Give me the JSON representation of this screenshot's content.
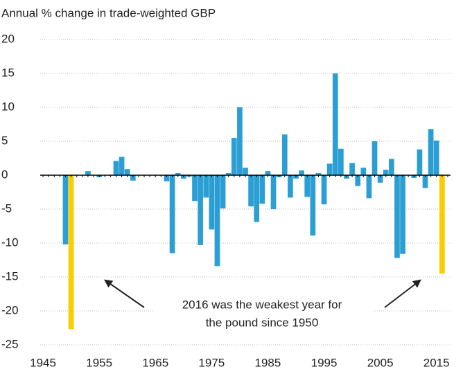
{
  "chart_data": {
    "type": "bar",
    "title": "Annual % change in trade-weighted GBP",
    "annotation": [
      "2016 was the weakest year for",
      "the pound since 1950"
    ],
    "x": [
      1949,
      1950,
      1951,
      1952,
      1953,
      1954,
      1955,
      1956,
      1957,
      1958,
      1959,
      1960,
      1961,
      1962,
      1963,
      1964,
      1965,
      1966,
      1967,
      1968,
      1969,
      1970,
      1971,
      1972,
      1973,
      1974,
      1975,
      1976,
      1977,
      1978,
      1979,
      1980,
      1981,
      1982,
      1983,
      1984,
      1985,
      1986,
      1987,
      1988,
      1989,
      1990,
      1991,
      1992,
      1993,
      1994,
      1995,
      1996,
      1997,
      1998,
      1999,
      2000,
      2001,
      2002,
      2003,
      2004,
      2005,
      2006,
      2007,
      2008,
      2009,
      2010,
      2011,
      2012,
      2013,
      2014,
      2015,
      2016
    ],
    "values": [
      -10.2,
      -22.7,
      0,
      0,
      0.6,
      0,
      -0.3,
      0,
      0,
      2.1,
      2.7,
      0.9,
      -0.8,
      0,
      0,
      0,
      0,
      0,
      -0.9,
      -11.5,
      0.3,
      -0.5,
      -0.2,
      -3.8,
      -10.3,
      -3.3,
      -8,
      -13.4,
      -4.9,
      0.3,
      5.5,
      10,
      1.1,
      -4.6,
      -6.9,
      -4.2,
      0.6,
      -5,
      -0.3,
      6,
      -3.3,
      -0.5,
      0.7,
      -3.2,
      -8.9,
      0.3,
      -4.3,
      1.7,
      15,
      3.9,
      -0.5,
      1.8,
      -1.6,
      1.1,
      -3.4,
      5,
      -1.1,
      0.8,
      2.4,
      -12.2,
      -11.6,
      0,
      -0.4,
      3.8,
      -1.9,
      6.8,
      5.1,
      -14.5
    ],
    "colors": [
      "#2b9fd4",
      "#f9cd00",
      "#2b9fd4",
      "#2b9fd4",
      "#2b9fd4",
      "#2b9fd4",
      "#2b9fd4",
      "#2b9fd4",
      "#2b9fd4",
      "#2b9fd4",
      "#2b9fd4",
      "#2b9fd4",
      "#2b9fd4",
      "#2b9fd4",
      "#2b9fd4",
      "#2b9fd4",
      "#2b9fd4",
      "#2b9fd4",
      "#2b9fd4",
      "#2b9fd4",
      "#2b9fd4",
      "#2b9fd4",
      "#2b9fd4",
      "#2b9fd4",
      "#2b9fd4",
      "#2b9fd4",
      "#2b9fd4",
      "#2b9fd4",
      "#2b9fd4",
      "#2b9fd4",
      "#2b9fd4",
      "#2b9fd4",
      "#2b9fd4",
      "#2b9fd4",
      "#2b9fd4",
      "#2b9fd4",
      "#2b9fd4",
      "#2b9fd4",
      "#2b9fd4",
      "#2b9fd4",
      "#2b9fd4",
      "#2b9fd4",
      "#2b9fd4",
      "#2b9fd4",
      "#2b9fd4",
      "#2b9fd4",
      "#2b9fd4",
      "#2b9fd4",
      "#2b9fd4",
      "#2b9fd4",
      "#2b9fd4",
      "#2b9fd4",
      "#2b9fd4",
      "#2b9fd4",
      "#2b9fd4",
      "#2b9fd4",
      "#2b9fd4",
      "#2b9fd4",
      "#2b9fd4",
      "#2b9fd4",
      "#2b9fd4",
      "#2b9fd4",
      "#2b9fd4",
      "#2b9fd4",
      "#2b9fd4",
      "#2b9fd4",
      "#2b9fd4",
      "#f9cd00"
    ],
    "xlim": [
      1944.5,
      2017.5
    ],
    "xticks": [
      1945,
      1955,
      1965,
      1975,
      1985,
      1995,
      2005,
      2015
    ],
    "ylim": [
      -25,
      20
    ],
    "yticks": [
      -25,
      -20,
      -15,
      -10,
      -5,
      0,
      5,
      10,
      15,
      20
    ],
    "grid": true
  }
}
